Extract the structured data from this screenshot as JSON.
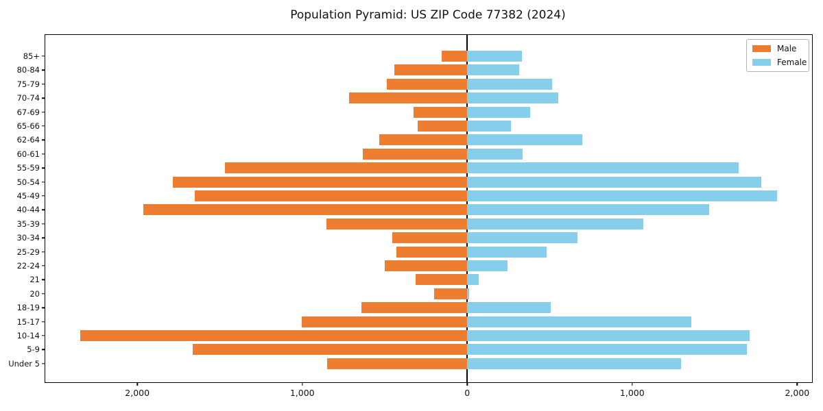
{
  "title": "Population Pyramid: US ZIP Code 77382 (2024)",
  "legend": {
    "male_label": "Male",
    "female_label": "Female"
  },
  "colors": {
    "male": "#ED7D31",
    "female": "#87CEEB",
    "axis": "#000000",
    "legend_border": "#b3b3b3",
    "background": "#ffffff"
  },
  "chart_data": {
    "type": "bar",
    "orientation": "horizontal-population-pyramid",
    "title": "Population Pyramid: US ZIP Code 77382 (2024)",
    "categories_top_to_bottom": [
      "85+",
      "80-84",
      "75-79",
      "70-74",
      "67-69",
      "65-66",
      "62-64",
      "60-61",
      "55-59",
      "50-54",
      "45-49",
      "40-44",
      "35-39",
      "30-34",
      "25-29",
      "22-24",
      "21",
      "20",
      "18-19",
      "15-17",
      "10-14",
      "5-9",
      "Under 5"
    ],
    "series": [
      {
        "name": "Male",
        "side": "left",
        "color": "#ED7D31",
        "values": [
          155,
          441,
          487,
          718,
          324,
          302,
          535,
          632,
          1468,
          1785,
          1651,
          1963,
          854,
          454,
          431,
          500,
          313,
          200,
          642,
          1004,
          2347,
          1665,
          851
        ]
      },
      {
        "name": "Female",
        "side": "right",
        "color": "#87CEEB",
        "values": [
          331,
          313,
          516,
          553,
          383,
          266,
          699,
          334,
          1644,
          1783,
          1879,
          1468,
          1066,
          667,
          481,
          244,
          71,
          12,
          504,
          1357,
          1710,
          1694,
          1294
        ]
      }
    ],
    "xlabel": "",
    "ylabel": "",
    "xlim": [
      -2558,
      2090
    ],
    "x_tick_values": [
      -2000,
      -1000,
      0,
      1000,
      2000
    ],
    "x_tick_labels": [
      "2,000",
      "1,000",
      "0",
      "1,000",
      "2,000"
    ],
    "grid": false,
    "legend_position": "upper right",
    "zero_axis_line": true
  }
}
